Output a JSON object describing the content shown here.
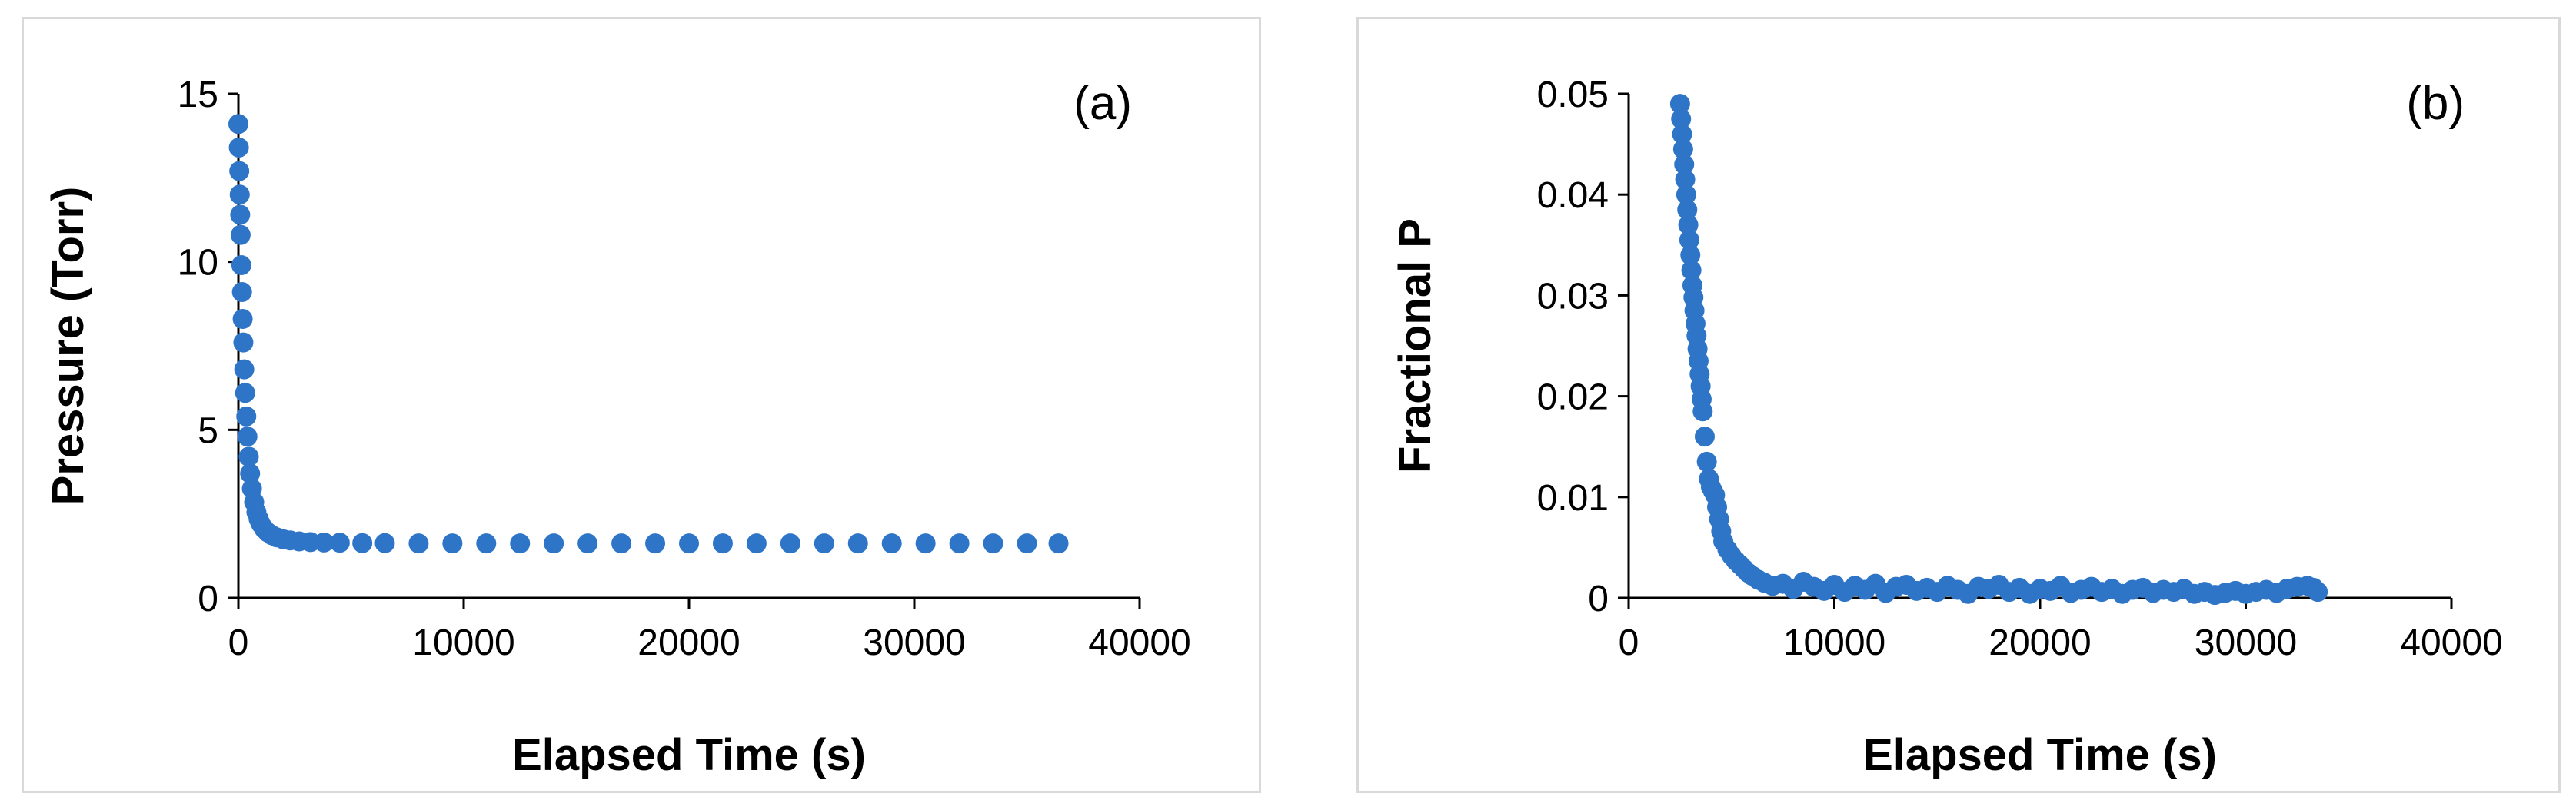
{
  "chart_data": [
    {
      "type": "scatter",
      "panel_label": "(a)",
      "xlabel": "Elapsed Time (s)",
      "ylabel": "Pressure (Torr)",
      "xlim": [
        0,
        40000
      ],
      "ylim": [
        0,
        15
      ],
      "xticks": [
        0,
        10000,
        20000,
        30000,
        40000
      ],
      "yticks": [
        0,
        5,
        10,
        15
      ],
      "grid": false,
      "marker_color": "#2E75C8",
      "series": [
        {
          "x": [
            0,
            20,
            40,
            60,
            80,
            100,
            130,
            160,
            190,
            220,
            260,
            300,
            350,
            400,
            460,
            520,
            600,
            700,
            800,
            900,
            1000,
            1150,
            1300,
            1500,
            1700,
            2000,
            2300,
            2700,
            3200,
            3800,
            4500,
            5500,
            6500,
            8000,
            9500,
            11000,
            12500,
            14000,
            15500,
            17000,
            18500,
            20000,
            21500,
            23000,
            24500,
            26000,
            27500,
            29000,
            30500,
            32000,
            33500,
            35000,
            36400
          ],
          "y": [
            14.1,
            13.4,
            12.7,
            12.0,
            11.4,
            10.8,
            9.9,
            9.1,
            8.3,
            7.6,
            6.8,
            6.1,
            5.4,
            4.8,
            4.2,
            3.7,
            3.25,
            2.85,
            2.55,
            2.35,
            2.2,
            2.05,
            1.95,
            1.86,
            1.8,
            1.74,
            1.71,
            1.68,
            1.66,
            1.65,
            1.64,
            1.63,
            1.63,
            1.62,
            1.62,
            1.62,
            1.62,
            1.62,
            1.62,
            1.62,
            1.62,
            1.62,
            1.62,
            1.62,
            1.62,
            1.62,
            1.62,
            1.62,
            1.62,
            1.62,
            1.62,
            1.62,
            1.62
          ]
        }
      ]
    },
    {
      "type": "scatter",
      "panel_label": "(b)",
      "xlabel": "Elapsed Time (s)",
      "ylabel": "Fractional P",
      "xlim": [
        0,
        40000
      ],
      "ylim": [
        0,
        0.05
      ],
      "xticks": [
        0,
        10000,
        20000,
        30000,
        40000
      ],
      "yticks": [
        0,
        0.01,
        0.02,
        0.03,
        0.04,
        0.05
      ],
      "grid": false,
      "marker_color": "#2E75C8",
      "series": [
        {
          "x": [
            2500,
            2550,
            2600,
            2650,
            2700,
            2750,
            2800,
            2850,
            2900,
            2950,
            3000,
            3050,
            3100,
            3150,
            3200,
            3250,
            3300,
            3350,
            3400,
            3450,
            3500,
            3550,
            3600,
            3700,
            3800,
            3900,
            4000,
            4100,
            4200,
            4300,
            4400,
            4500,
            4600,
            4800,
            5000,
            5200,
            5400,
            5600,
            5800,
            6000,
            6300,
            6600,
            7000,
            7500,
            8000,
            8500,
            9000,
            9500,
            10000,
            10500,
            11000,
            11500,
            12000,
            12500,
            13000,
            13500,
            14000,
            14500,
            15000,
            15500,
            16000,
            16500,
            17000,
            17500,
            18000,
            18500,
            19000,
            19500,
            20000,
            20500,
            21000,
            21500,
            22000,
            22500,
            23000,
            23500,
            24000,
            24500,
            25000,
            25500,
            26000,
            26500,
            27000,
            27500,
            28000,
            28500,
            29000,
            29500,
            30000,
            30500,
            31000,
            31500,
            32000,
            32500,
            33000,
            33300,
            33500
          ],
          "y": [
            0.049,
            0.0475,
            0.046,
            0.0445,
            0.043,
            0.0415,
            0.04,
            0.0385,
            0.037,
            0.0355,
            0.034,
            0.0325,
            0.031,
            0.0298,
            0.0285,
            0.0272,
            0.026,
            0.0247,
            0.0235,
            0.0222,
            0.021,
            0.0197,
            0.0185,
            0.016,
            0.0135,
            0.0118,
            0.011,
            0.0106,
            0.0102,
            0.009,
            0.0078,
            0.0066,
            0.0056,
            0.0048,
            0.0042,
            0.0037,
            0.0033,
            0.0029,
            0.0025,
            0.0022,
            0.0018,
            0.0015,
            0.0012,
            0.0014,
            0.0009,
            0.0016,
            0.0011,
            0.0007,
            0.0013,
            0.0006,
            0.0012,
            0.0008,
            0.0014,
            0.0005,
            0.0011,
            0.0013,
            0.0007,
            0.001,
            0.0006,
            0.0012,
            0.0008,
            0.0004,
            0.0011,
            0.0009,
            0.0013,
            0.0006,
            0.001,
            0.0004,
            0.0009,
            0.0007,
            0.0012,
            0.0005,
            0.0008,
            0.0011,
            0.0006,
            0.0009,
            0.0004,
            0.0008,
            0.001,
            0.0005,
            0.0008,
            0.0006,
            0.0009,
            0.0004,
            0.0006,
            0.0003,
            0.0005,
            0.0007,
            0.0004,
            0.0006,
            0.0008,
            0.0005,
            0.0009,
            0.0011,
            0.0012,
            0.001,
            0.0006
          ]
        }
      ]
    }
  ]
}
